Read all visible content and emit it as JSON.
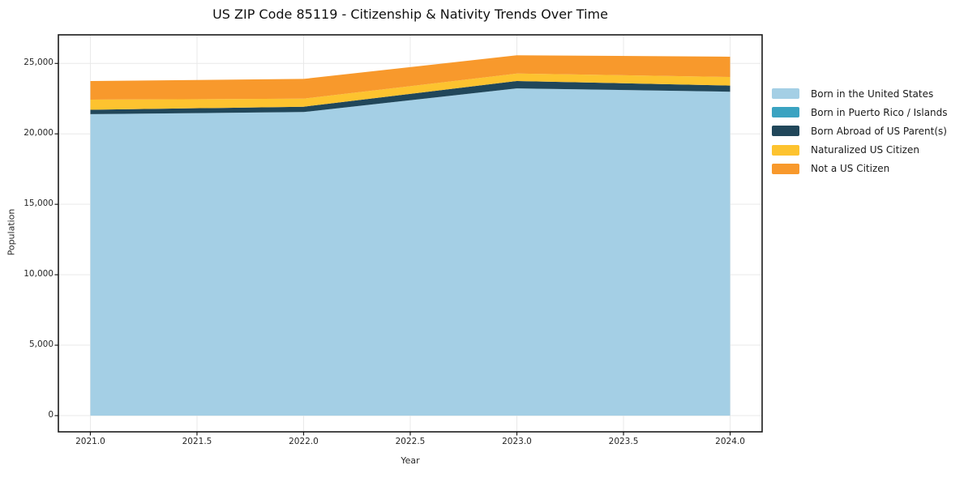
{
  "figure": {
    "title": "US ZIP Code 85119 - Citizenship & Nativity Trends Over Time",
    "background": "#ffffff"
  },
  "axes": {
    "xlabel": "Year",
    "ylabel": "Population",
    "xlim": [
      2020.85,
      2024.15
    ],
    "ylim": [
      -1150,
      27030
    ],
    "x_ticks": {
      "values": [
        2021.0,
        2021.5,
        2022.0,
        2022.5,
        2023.0,
        2023.5,
        2024.0
      ],
      "labels": [
        "2021.0",
        "2021.5",
        "2022.0",
        "2022.5",
        "2023.0",
        "2023.5",
        "2024.0"
      ]
    },
    "y_ticks": {
      "values": [
        0,
        5000,
        10000,
        15000,
        20000,
        25000
      ],
      "labels": [
        "0",
        "5,000",
        "10,000",
        "15,000",
        "20,000",
        "25,000"
      ]
    },
    "grid": true,
    "grid_color": "#e9e9e9",
    "spine_color": "#1a1a1a",
    "tick_color": "#1a1a1a"
  },
  "chart_data": {
    "type": "area",
    "stacked": true,
    "title": "US ZIP Code 85119 - Citizenship & Nativity Trends Over Time",
    "xlabel": "Year",
    "ylabel": "Population",
    "x": [
      2021,
      2022,
      2023,
      2024
    ],
    "series": [
      {
        "name": "Born in the United States",
        "color": "#a4cfe5",
        "values": [
          21400,
          21550,
          23230,
          22990
        ]
      },
      {
        "name": "Born in Puerto Rico / Islands",
        "color": "#3aa3c1",
        "values": [
          0,
          0,
          0,
          0
        ]
      },
      {
        "name": "Born Abroad of US Parent(s)",
        "color": "#21475a",
        "values": [
          310,
          380,
          520,
          440
        ]
      },
      {
        "name": "Naturalized US Citizen",
        "color": "#fdc32f",
        "values": [
          720,
          570,
          530,
          610
        ]
      },
      {
        "name": "Not a US Citizen",
        "color": "#f8992c",
        "values": [
          1320,
          1400,
          1300,
          1440
        ]
      }
    ],
    "totals": [
      23750,
      23900,
      25580,
      25480
    ],
    "legend_position": "right-outside",
    "xrange_shown": [
      2021.0,
      2024.0
    ],
    "yrange_shown": [
      0,
      25000
    ]
  }
}
